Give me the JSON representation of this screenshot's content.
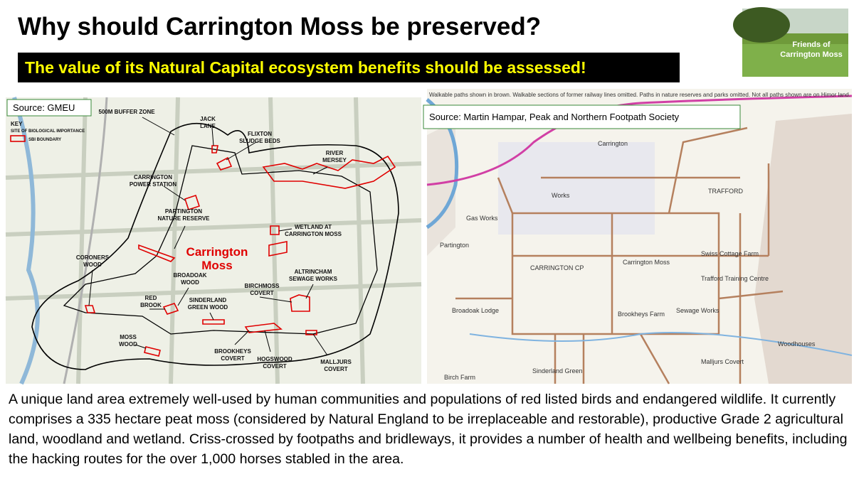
{
  "header": {
    "title": "Why should Carrington Moss be preserved?",
    "subtitle": "The value of its Natural Capital ecosystem benefits should be assessed!",
    "logo_text": [
      "Friends of",
      "Carrington Moss"
    ]
  },
  "left_map": {
    "source": "Source: GMEU",
    "key": [
      "KEY",
      "SITE OF BIOLOGICAL IMPORTANCE",
      "SBI BOUNDARY"
    ],
    "main_label": [
      "Carrington",
      "Moss"
    ],
    "labels": [
      [
        "500M BUFFER ZONE"
      ],
      [
        "JACK",
        "LANE"
      ],
      [
        "FLIXTON",
        "SLUDGE BEDS"
      ],
      [
        "RIVER",
        "MERSEY"
      ],
      [
        "CARRINGTON",
        "POWER STATION"
      ],
      [
        "PARTINGTON",
        "NATURE RESERVE"
      ],
      [
        "WETLAND AT",
        "CARRINGTON MOSS"
      ],
      [
        "CORONERS",
        "WOOD"
      ],
      [
        "BROADOAK",
        "WOOD"
      ],
      [
        "ALTRINCHAM",
        "SEWAGE WORKS"
      ],
      [
        "BIRCHMOSS",
        "COVERT"
      ],
      [
        "RED",
        "BROOK"
      ],
      [
        "SINDERLAND",
        "GREEN WOOD"
      ],
      [
        "MOSS",
        "WOOD"
      ],
      [
        "BROOKHEYS",
        "COVERT"
      ],
      [
        "HOGSWOOD",
        "COVERT"
      ],
      [
        "MALLJURS",
        "COVERT"
      ]
    ]
  },
  "right_map": {
    "note": "Walkable paths shown in brown. Walkable sections of former railway lines omitted. Paths in nature reserves and parks omitted. Not all paths shown are on Himor land.",
    "source": "Source: Martin Hampar, Peak and Northern Footpath Society",
    "labels": [
      "Carrington",
      "Works",
      "TRAFFORD",
      "Gas Works",
      "Partington",
      "CARRINGTON CP",
      "Carrington Moss",
      "Swiss Cottage Farm",
      "Trafford Training Centre",
      "Broadoak Lodge",
      "Sinderland Green",
      "Birch Farm",
      "Brookheys Farm",
      "Woodhouses",
      "Sewage Works",
      "Malljurs Covert"
    ]
  },
  "body": "A unique land area extremely well-used by human communities and populations of red listed birds and endangered wildlife.  It currently comprises a 335 hectare peat moss (considered by Natural England to be irreplaceable and restorable), productive Grade 2 agricultural land, woodland and wetland.  Criss-crossed by footpaths and bridleways, it provides a number of health and wellbeing benefits, including the hacking routes for the over 1,000 horses stabled in the area."
}
